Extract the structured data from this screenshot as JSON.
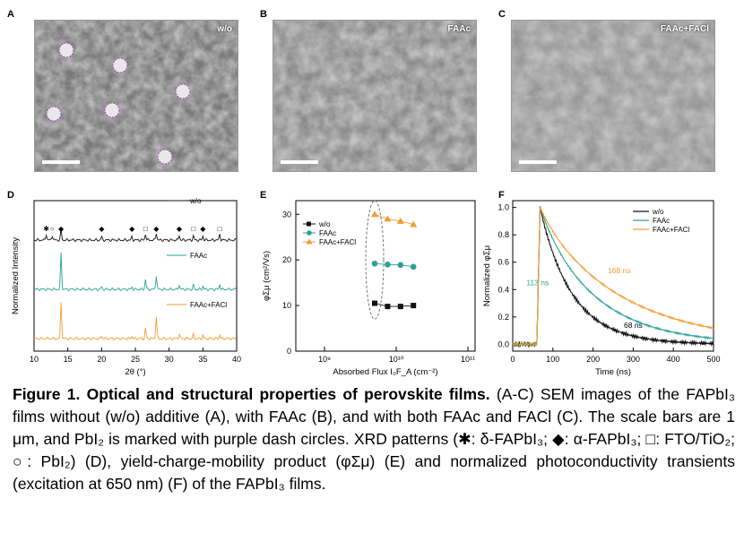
{
  "panels": {
    "a": {
      "letter": "A",
      "label": "w/o"
    },
    "b": {
      "letter": "B",
      "label": "FAAc"
    },
    "c": {
      "letter": "C",
      "label": "FAAc+FACl"
    },
    "d": {
      "letter": "D"
    },
    "e": {
      "letter": "E"
    },
    "f": {
      "letter": "F"
    }
  },
  "colors": {
    "black": "#111111",
    "teal": "#2aa198",
    "orange": "#f39c34",
    "purple": "#b15bbf"
  },
  "chart_data": [
    {
      "type": "line",
      "panel": "D",
      "xlabel": "2θ (°)",
      "ylabel": "Normalized Intensity",
      "xlim": [
        10,
        40
      ],
      "xticks": [
        "10",
        "15",
        "20",
        "25",
        "30",
        "35",
        "40"
      ],
      "series": [
        {
          "name": "w/o",
          "peaks": [
            [
              11.8,
              0.15
            ],
            [
              12.7,
              0.12
            ],
            [
              14.0,
              0.25
            ],
            [
              20.0,
              0.08
            ],
            [
              24.5,
              0.08
            ],
            [
              26.5,
              0.15
            ],
            [
              28.1,
              0.18
            ],
            [
              31.5,
              0.12
            ],
            [
              33.6,
              0.1
            ],
            [
              35.0,
              0.1
            ],
            [
              37.5,
              0.15
            ]
          ]
        },
        {
          "name": "FAAc",
          "peaks": [
            [
              14.0,
              0.9
            ],
            [
              20.0,
              0.06
            ],
            [
              24.5,
              0.06
            ],
            [
              26.5,
              0.25
            ],
            [
              28.1,
              0.35
            ],
            [
              31.5,
              0.12
            ],
            [
              33.6,
              0.1
            ],
            [
              35.0,
              0.08
            ],
            [
              37.5,
              0.12
            ]
          ]
        },
        {
          "name": "FAAc+FACl",
          "peaks": [
            [
              14.0,
              0.9
            ],
            [
              20.0,
              0.06
            ],
            [
              24.5,
              0.06
            ],
            [
              26.5,
              0.25
            ],
            [
              28.1,
              0.55
            ],
            [
              31.5,
              0.12
            ],
            [
              33.6,
              0.1
            ],
            [
              35.0,
              0.08
            ],
            [
              37.5,
              0.1
            ]
          ]
        }
      ],
      "markers": [
        {
          "symbol": "✱",
          "x": 11.8
        },
        {
          "symbol": "○",
          "x": 12.7
        },
        {
          "symbol": "◆",
          "x": 14.0
        },
        {
          "symbol": "◆",
          "x": 20.0
        },
        {
          "symbol": "◆",
          "x": 24.5
        },
        {
          "symbol": "□",
          "x": 26.5
        },
        {
          "symbol": "◆",
          "x": 28.1
        },
        {
          "symbol": "◆",
          "x": 31.5
        },
        {
          "symbol": "□",
          "x": 33.6
        },
        {
          "symbol": "◆",
          "x": 35.0
        },
        {
          "symbol": "□",
          "x": 37.5
        }
      ]
    },
    {
      "type": "scatter",
      "panel": "E",
      "xlabel": "Absorbed Flux I₀F_A (cm⁻²)",
      "ylabel": "φΣμ (cm²/Vs)",
      "xscale": "log",
      "xlim_log10": [
        8.6,
        11.1
      ],
      "ylim": [
        0,
        33
      ],
      "xticks": [
        "10⁹",
        "10¹⁰",
        "10¹¹"
      ],
      "yticks": [
        "0",
        "10",
        "20",
        "30"
      ],
      "series": [
        {
          "name": "w/o",
          "x_log10": [
            9.7,
            9.88,
            10.06,
            10.24
          ],
          "y": [
            10.5,
            9.8,
            9.8,
            10.0
          ]
        },
        {
          "name": "FAAc",
          "x_log10": [
            9.7,
            9.88,
            10.06,
            10.24
          ],
          "y": [
            19.2,
            19.0,
            18.9,
            18.5
          ]
        },
        {
          "name": "FAAc+FACl",
          "x_log10": [
            9.7,
            9.88,
            10.06,
            10.24
          ],
          "y": [
            30.0,
            29.0,
            28.5,
            27.8
          ]
        }
      ]
    },
    {
      "type": "line",
      "panel": "F",
      "xlabel": "Time (ns)",
      "ylabel": "Normalized φΣμ",
      "xlim": [
        0,
        500
      ],
      "ylim": [
        -0.05,
        1.05
      ],
      "xticks": [
        "0",
        "100",
        "200",
        "300",
        "400",
        "500"
      ],
      "yticks": [
        "0.0",
        "0.2",
        "0.4",
        "0.6",
        "0.8",
        "1.0"
      ],
      "series": [
        {
          "name": "w/o",
          "tau_ns": 68,
          "tau_label": "68 ns"
        },
        {
          "name": "FAAc",
          "tau_ns": 113,
          "tau_label": "113 ns"
        },
        {
          "name": "FAAc+FACl",
          "tau_ns": 168,
          "tau_label": "168 ns"
        }
      ]
    }
  ],
  "caption": {
    "title": "Figure 1. Optical and structural properties of perovskite films.",
    "body": " (A-C) SEM images of the FAPbI₃ films without (w/o) additive (A), with FAAc (B), and with both FAAc and FACl (C). The scale bars are 1 μm, and PbI₂ is marked with purple dash circles. XRD patterns (✱: δ-FAPbI₃; ◆: α-FAPbI₃; □: FTO/TiO₂; ○: PbI₂) (D), yield-charge-mobility product (φΣμ) (E) and normalized photoconductivity transients (excitation at 650 nm) (F) of the FAPbI₃ films."
  }
}
